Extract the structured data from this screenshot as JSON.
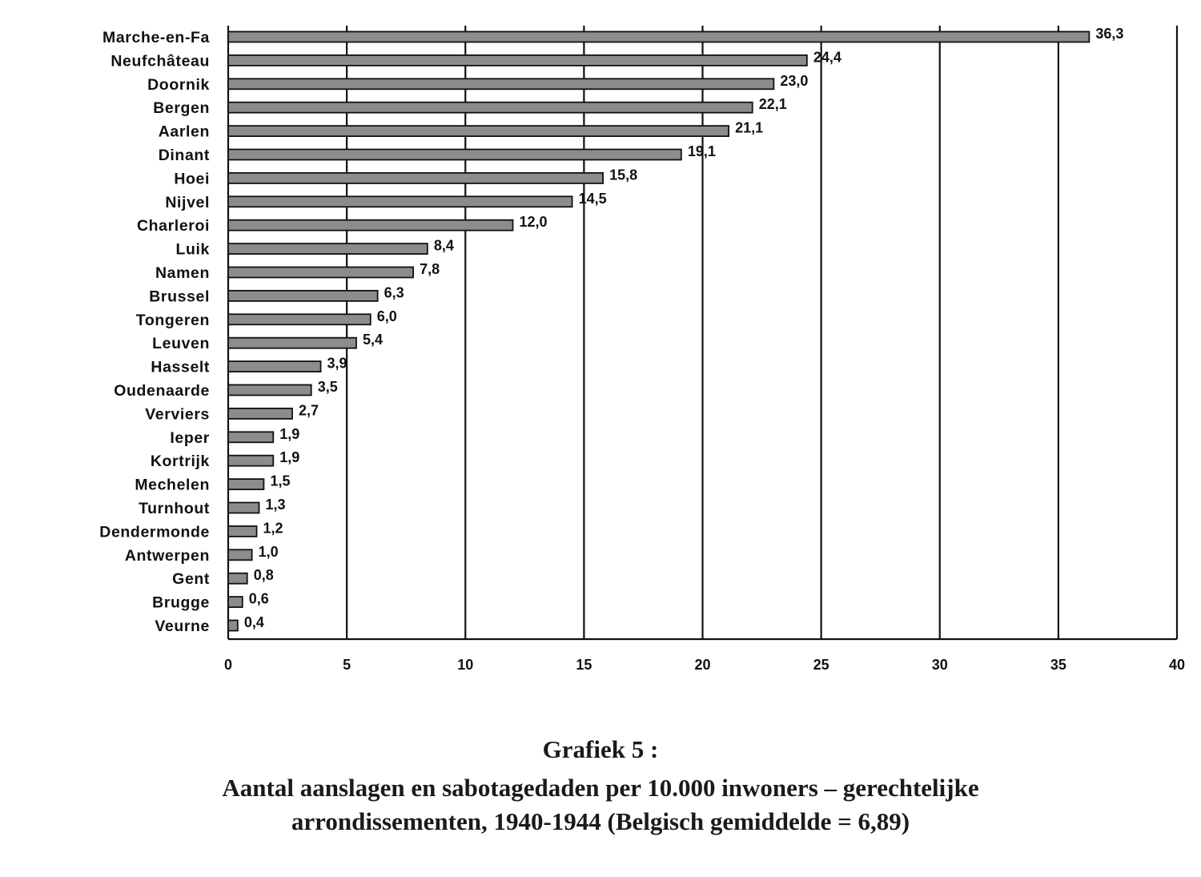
{
  "caption": {
    "number": "Grafiek 5 :",
    "line1": "Aantal aanslagen en sabotagedaden per 10.000 inwoners – gerechtelijke",
    "line2": "arrondissementen, 1940-1944 (Belgisch gemiddelde = 6,89)"
  },
  "chart_data": {
    "type": "bar",
    "orientation": "horizontal",
    "title": "",
    "xlabel": "",
    "ylabel": "",
    "xlim": [
      0,
      40
    ],
    "x_ticks": [
      0,
      5,
      10,
      15,
      20,
      25,
      30,
      35,
      40
    ],
    "grid": "vertical",
    "bar_color": "#8c8c8c",
    "categories": [
      "Marche-en-Fa",
      "Neufchâteau",
      "Doornik",
      "Bergen",
      "Aarlen",
      "Dinant",
      "Hoei",
      "Nijvel",
      "Charleroi",
      "Luik",
      "Namen",
      "Brussel",
      "Tongeren",
      "Leuven",
      "Hasselt",
      "Oudenaarde",
      "Verviers",
      "Ieper",
      "Kortrijk",
      "Mechelen",
      "Turnhout",
      "Dendermonde",
      "Antwerpen",
      "Gent",
      "Brugge",
      "Veurne"
    ],
    "values": [
      36.3,
      24.4,
      23.0,
      22.1,
      21.1,
      19.1,
      15.8,
      14.5,
      12.0,
      8.4,
      7.8,
      6.3,
      6.0,
      5.4,
      3.9,
      3.5,
      2.7,
      1.9,
      1.9,
      1.5,
      1.3,
      1.2,
      1.0,
      0.8,
      0.6,
      0.4
    ],
    "value_labels": [
      "36,3",
      "24,4",
      "23,0",
      "22,1",
      "21,1",
      "19,1",
      "15,8",
      "14,5",
      "12,0",
      "8,4",
      "7,8",
      "6,3",
      "6,0",
      "5,4",
      "3,9",
      "3,5",
      "2,7",
      "1,9",
      "1,9",
      "1,5",
      "1,3",
      "1,2",
      "1,0",
      "0,8",
      "0,6",
      "0,4"
    ]
  }
}
